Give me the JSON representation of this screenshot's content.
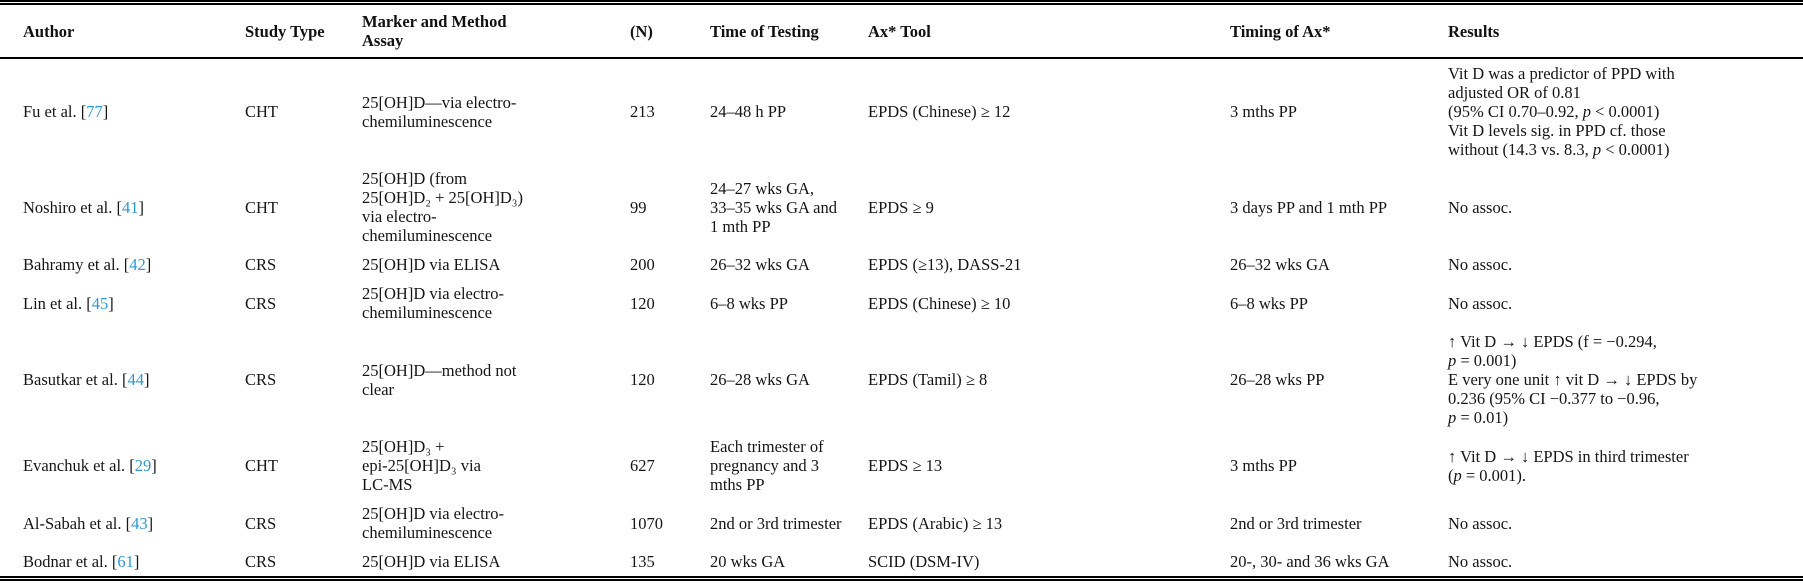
{
  "colors": {
    "citation_link": "#2e96d4",
    "text": "#151515",
    "rule": "#000000"
  },
  "citation_format": {
    "open": "[",
    "close": "]"
  },
  "table": {
    "columns": [
      {
        "key": "author",
        "label": "Author"
      },
      {
        "key": "study_type",
        "label": "Study Type"
      },
      {
        "key": "marker",
        "label": "Marker and Method\nAssay"
      },
      {
        "key": "n",
        "label": "(N)"
      },
      {
        "key": "time_of_testing",
        "label": "Time of Testing"
      },
      {
        "key": "ax_tool",
        "label": "Ax* Tool"
      },
      {
        "key": "timing_of_ax",
        "label": "Timing of Ax*"
      },
      {
        "key": "results",
        "label": "Results"
      }
    ],
    "rows": [
      {
        "author": "Fu et al.",
        "ref": "77",
        "study_type": "CHT",
        "marker": "25[OH]D—via electro-\nchemiluminescence",
        "n": "213",
        "time_of_testing": "24–48 h PP",
        "ax_tool": "EPDS (Chinese) ≥ 12",
        "timing_of_ax": "3 mths PP",
        "results": "Vit D was a predictor of PPD with\nadjusted OR of 0.81\n(95% CI 0.70–0.92, p < 0.0001)\nVit D levels sig. in PPD cf. those\nwithout (14.3 vs. 8.3, p < 0.0001)"
      },
      {
        "author": "Noshiro et al.",
        "ref": "41",
        "study_type": "CHT",
        "marker": "25[OH]D (from\n25[OH]D₂ + 25[OH]D₃)\nvia electro-\nchemiluminescence",
        "n": "99",
        "time_of_testing": "24–27 wks GA,\n33–35 wks GA and\n1 mth PP",
        "ax_tool": "EPDS ≥ 9",
        "timing_of_ax": "3 days PP and 1 mth PP",
        "results": "No assoc."
      },
      {
        "author": "Bahramy et al.",
        "ref": "42",
        "study_type": "CRS",
        "marker": "25[OH]D via ELISA",
        "n": "200",
        "time_of_testing": "26–32 wks GA",
        "ax_tool": "EPDS (≥13), DASS-21",
        "timing_of_ax": "26–32 wks GA",
        "results": "No assoc."
      },
      {
        "author": "Lin et al.",
        "ref": "45",
        "study_type": "CRS",
        "marker": "25[OH]D via electro-\nchemiluminescence",
        "n": "120",
        "time_of_testing": "6–8 wks PP",
        "ax_tool": "EPDS (Chinese) ≥ 10",
        "timing_of_ax": "6–8 wks PP",
        "results": "No assoc."
      },
      {
        "author": "Basutkar et al.",
        "ref": "44",
        "study_type": "CRS",
        "marker": "25[OH]D—method not\nclear",
        "n": "120",
        "time_of_testing": "26–28 wks GA",
        "ax_tool": "EPDS (Tamil) ≥ 8",
        "timing_of_ax": "26–28 wks PP",
        "results": "↑ Vit D → ↓ EPDS (f = −0.294,\np = 0.001)\nE very one unit ↑ vit D → ↓ EPDS by\n0.236 (95% CI −0.377 to −0.96,\np = 0.01)"
      },
      {
        "author": "Evanchuk et al.",
        "ref": "29",
        "study_type": "CHT",
        "marker": "25[OH]D₃ +\nepi-25[OH]D₃ via\nLC-MS",
        "n": "627",
        "time_of_testing": "Each trimester of\npregnancy and 3\nmths PP",
        "ax_tool": "EPDS ≥ 13",
        "timing_of_ax": "3 mths PP",
        "results": "↑ Vit D → ↓ EPDS in third trimester\n(p = 0.001)."
      },
      {
        "author": "Al-Sabah et al.",
        "ref": "43",
        "study_type": "CRS",
        "marker": "25[OH]D via electro-\nchemiluminescence",
        "n": "1070",
        "time_of_testing": "2nd or 3rd trimester",
        "ax_tool": "EPDS (Arabic) ≥ 13",
        "timing_of_ax": "2nd or 3rd trimester",
        "results": "No assoc."
      },
      {
        "author": "Bodnar et al.",
        "ref": "61",
        "study_type": "CRS",
        "marker": "25[OH]D via ELISA",
        "n": "135",
        "time_of_testing": "20 wks GA",
        "ax_tool": "SCID (DSM-IV)",
        "timing_of_ax": "20-, 30- and 36 wks GA",
        "results": "No assoc."
      }
    ]
  }
}
